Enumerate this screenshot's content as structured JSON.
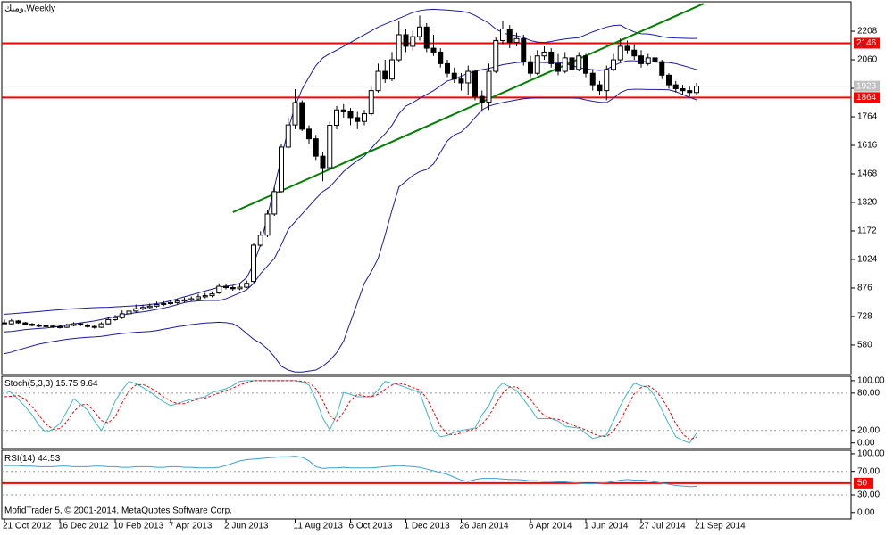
{
  "chart_data": [
    {
      "type": "candlestick",
      "title": "ومبك,Weekly",
      "categories": [
        "21 Oct 2012",
        null,
        null,
        null,
        null,
        null,
        null,
        null,
        "16 Dec 2012",
        null,
        null,
        null,
        null,
        null,
        null,
        null,
        "10 Feb 2013",
        null,
        null,
        null,
        null,
        null,
        null,
        null,
        "7 Apr 2013",
        null,
        null,
        null,
        null,
        null,
        null,
        null,
        "2 Jun 2013",
        null,
        null,
        null,
        null,
        null,
        null,
        null,
        null,
        null,
        "11 Aug 2013",
        null,
        null,
        null,
        null,
        null,
        null,
        null,
        "6 Oct 2013",
        null,
        null,
        null,
        null,
        null,
        null,
        null,
        "1 Dec 2013",
        null,
        null,
        null,
        null,
        null,
        null,
        null,
        "26 Jan 2014",
        null,
        null,
        null,
        null,
        null,
        null,
        null,
        null,
        null,
        "6 Apr 2014",
        null,
        null,
        null,
        null,
        null,
        null,
        null,
        "1 Jun 2014",
        null,
        null,
        null,
        null,
        null,
        null,
        null,
        "27 Jul 2014",
        null,
        null,
        null,
        null,
        null,
        null,
        null,
        "21 Sep 2014"
      ],
      "open": [
        695,
        690,
        705,
        695,
        688,
        682,
        680,
        678,
        675,
        672,
        682,
        690,
        684,
        676,
        672,
        690,
        712,
        722,
        742,
        756,
        768,
        775,
        782,
        790,
        795,
        800,
        808,
        814,
        820,
        830,
        836,
        850,
        885,
        878,
        872,
        880,
        910,
        1098,
        1150,
        1260,
        1376,
        1607,
        1722,
        1838,
        1700,
        1650,
        1560,
        1500,
        1720,
        1800,
        1790,
        1760,
        1740,
        1780,
        1900,
        2000,
        1960,
        2060,
        2190,
        2130,
        2180,
        2230,
        2120,
        2100,
        2040,
        1990,
        1960,
        1940,
        2000,
        1870,
        1840,
        2000,
        2160,
        2220,
        2150,
        2170,
        2050,
        1990,
        2080,
        2100,
        2040,
        2000,
        2070,
        2010,
        2080,
        1990,
        1930,
        1900,
        2010,
        2060,
        2130,
        2110,
        2080,
        2040,
        2070,
        2050,
        1980,
        1930,
        1910,
        1900,
        1890
      ],
      "high": [
        712,
        715,
        710,
        700,
        695,
        690,
        688,
        686,
        684,
        690,
        698,
        696,
        690,
        684,
        698,
        725,
        735,
        760,
        775,
        790,
        790,
        795,
        805,
        808,
        812,
        820,
        826,
        832,
        845,
        850,
        858,
        900,
        895,
        888,
        895,
        915,
        1110,
        1170,
        1280,
        1400,
        1620,
        1760,
        1907,
        1850,
        1720,
        1670,
        1580,
        1740,
        1820,
        1830,
        1810,
        1790,
        1800,
        1920,
        2040,
        2060,
        2100,
        2260,
        2220,
        2210,
        2290,
        2250,
        2190,
        2120,
        2060,
        2020,
        1990,
        2030,
        2010,
        1900,
        2040,
        2180,
        2260,
        2240,
        2200,
        2190,
        2080,
        2110,
        2130,
        2120,
        2090,
        2100,
        2090,
        2100,
        2090,
        2010,
        1950,
        2030,
        2090,
        2170,
        2160,
        2140,
        2110,
        2090,
        2080,
        2060,
        1990,
        1950,
        1930,
        1920,
        1940
      ],
      "low": [
        688,
        685,
        690,
        682,
        676,
        672,
        670,
        668,
        665,
        668,
        676,
        678,
        670,
        665,
        668,
        686,
        705,
        715,
        735,
        748,
        760,
        768,
        775,
        782,
        788,
        792,
        800,
        806,
        812,
        822,
        828,
        845,
        868,
        862,
        865,
        875,
        905,
        1090,
        1140,
        1250,
        1370,
        1600,
        1700,
        1690,
        1620,
        1540,
        1430,
        1490,
        1700,
        1760,
        1720,
        1700,
        1720,
        1770,
        1890,
        1940,
        1950,
        2050,
        2100,
        2110,
        2160,
        2100,
        2080,
        2020,
        1970,
        1940,
        1900,
        1880,
        1850,
        1790,
        1800,
        1990,
        2140,
        2120,
        2130,
        2030,
        1970,
        1980,
        2060,
        2020,
        1980,
        1990,
        1990,
        2000,
        1970,
        1900,
        1880,
        1850,
        2000,
        2050,
        2090,
        2060,
        2020,
        2030,
        2020,
        1960,
        1910,
        1890,
        1880,
        1870,
        1880
      ],
      "close": [
        690,
        705,
        695,
        688,
        682,
        680,
        678,
        675,
        672,
        682,
        690,
        684,
        676,
        672,
        690,
        712,
        722,
        742,
        756,
        768,
        775,
        782,
        790,
        795,
        800,
        808,
        814,
        820,
        830,
        836,
        845,
        885,
        878,
        872,
        880,
        900,
        1098,
        1150,
        1260,
        1376,
        1607,
        1722,
        1838,
        1700,
        1650,
        1560,
        1500,
        1720,
        1800,
        1790,
        1760,
        1740,
        1780,
        1900,
        2000,
        1960,
        2060,
        2190,
        2130,
        2180,
        2230,
        2120,
        2100,
        2040,
        1990,
        1960,
        1940,
        2000,
        1870,
        1840,
        2000,
        2160,
        2220,
        2150,
        2170,
        2050,
        1990,
        2080,
        2100,
        2040,
        2000,
        2070,
        2010,
        2080,
        1990,
        1930,
        1900,
        2010,
        2060,
        2130,
        2110,
        2080,
        2040,
        2070,
        2050,
        1980,
        1930,
        1910,
        1900,
        1890,
        1923
      ],
      "series": [
        {
          "color": "#1a1aa6",
          "values": [
            740,
            742,
            745,
            748,
            751,
            754,
            757,
            760,
            763,
            766,
            768,
            770,
            772,
            774,
            775,
            776,
            778,
            780,
            782,
            784,
            786,
            790,
            795,
            800,
            810,
            820,
            830,
            840,
            850,
            860,
            870,
            880,
            885,
            890,
            900,
            930,
            1000,
            1100,
            1250,
            1400,
            1550,
            1700,
            1820,
            1907,
            1970,
            2030,
            2070,
            2092,
            2110,
            2130,
            2150,
            2170,
            2190,
            2210,
            2230,
            2245,
            2260,
            2275,
            2290,
            2305,
            2315,
            2320,
            2322,
            2320,
            2318,
            2315,
            2312,
            2305,
            2290,
            2270,
            2250,
            2220,
            2200,
            2190,
            2185,
            2175,
            2160,
            2152,
            2150,
            2155,
            2162,
            2168,
            2172,
            2175,
            2190,
            2205,
            2218,
            2230,
            2238,
            2240,
            2220,
            2205,
            2195,
            2194,
            2188,
            2180,
            2175,
            2173,
            2172,
            2171,
            2171
          ]
        },
        {
          "color": "#1a1aa6",
          "values": [
            648,
            650,
            655,
            660,
            663,
            666,
            668,
            672,
            678,
            685,
            690,
            695,
            700,
            705,
            712,
            720,
            728,
            735,
            742,
            748,
            752,
            758,
            765,
            772,
            780,
            790,
            800,
            806,
            809,
            811,
            811,
            811,
            820,
            835,
            850,
            867,
            900,
            950,
            990,
            1029,
            1100,
            1180,
            1220,
            1260,
            1300,
            1340,
            1376,
            1400,
            1440,
            1480,
            1510,
            1537,
            1560,
            1600,
            1640,
            1676,
            1720,
            1780,
            1820,
            1838,
            1860,
            1880,
            1900,
            1925,
            1950,
            1960,
            1975,
            1990,
            2000,
            2009,
            2015,
            2025,
            2035,
            2040,
            2046,
            2048,
            2048,
            2047,
            2046,
            2046,
            2046,
            2040,
            2030,
            2020,
            2012,
            2009,
            2005,
            2010,
            2030,
            2045,
            2055,
            2055,
            2052,
            2050,
            2048,
            2047,
            2046,
            2040,
            2030,
            2020,
            2009
          ]
        },
        {
          "color": "#1a1aa6",
          "values": [
            535,
            543,
            555,
            565,
            575,
            585,
            592,
            598,
            604,
            610,
            614,
            617,
            620,
            622,
            625,
            630,
            635,
            640,
            643,
            646,
            648,
            650,
            655,
            662,
            668,
            675,
            680,
            686,
            690,
            694,
            696,
            698,
            696,
            690,
            670,
            640,
            610,
            590,
            560,
            520,
            470,
            450,
            440,
            440,
            445,
            450,
            470,
            500,
            540,
            600,
            700,
            800,
            900,
            960,
            1030,
            1150,
            1280,
            1400,
            1430,
            1460,
            1480,
            1491,
            1520,
            1580,
            1640,
            1670,
            1685,
            1720,
            1760,
            1800,
            1820,
            1830,
            1838,
            1845,
            1852,
            1858,
            1861,
            1862,
            1862,
            1862,
            1862,
            1862,
            1862,
            1860,
            1852,
            1845,
            1840,
            1838,
            1860,
            1890,
            1905,
            1907,
            1907,
            1906,
            1906,
            1905,
            1904,
            1895,
            1880,
            1865,
            1852
          ]
        }
      ],
      "price_lines": [
        {
          "value": 2146,
          "color": "#ff0000"
        },
        {
          "value": 1864,
          "color": "#ff0000"
        }
      ],
      "current_price": 1923,
      "trendline": {
        "x": [
          33,
          101
        ],
        "y": [
          1269,
          2351
        ],
        "color": "#008000"
      },
      "ylim": [
        427,
        2361
      ],
      "yticks": [
        580,
        728,
        876,
        1024,
        1172,
        1320,
        1468,
        1616,
        1764,
        1912,
        2060,
        2208
      ],
      "copyright": "MofidTrader 5, © 2001-2014, MetaQuotes Software Corp."
    },
    {
      "type": "line",
      "title": "Stoch(5,3,3)",
      "series": [
        {
          "color": "#3cb8c8",
          "values": [
            84,
            81,
            70,
            58,
            45,
            28,
            17,
            22,
            31,
            50,
            71,
            62,
            53,
            35,
            20,
            40,
            67,
            85,
            99,
            95,
            89,
            82,
            74,
            66,
            60,
            63,
            67,
            70,
            72,
            74,
            81,
            84,
            87,
            92,
            99,
            100,
            100,
            100,
            100,
            100,
            100,
            100,
            100,
            98,
            93,
            70,
            40,
            21,
            45,
            81,
            78,
            74,
            74,
            74,
            85,
            99,
            96,
            93,
            89,
            85,
            81,
            50,
            20,
            10,
            12,
            17,
            20,
            22,
            24,
            45,
            60,
            85,
            96,
            90,
            84,
            70,
            55,
            39,
            39,
            39,
            35,
            27,
            25,
            24,
            15,
            7,
            10,
            13,
            35,
            60,
            80,
            96,
            92,
            89,
            75,
            53,
            30,
            10,
            4,
            0,
            15.75
          ]
        },
        {
          "color": "#ff0000",
          "dash": true,
          "values": [
            74,
            75,
            76,
            70,
            58,
            44,
            30,
            22,
            23,
            34,
            50,
            61,
            62,
            50,
            36,
            32,
            42,
            64,
            84,
            93,
            94,
            89,
            82,
            74,
            67,
            63,
            63,
            67,
            70,
            72,
            76,
            80,
            84,
            88,
            93,
            97,
            100,
            100,
            100,
            100,
            100,
            100,
            100,
            99,
            97,
            87,
            68,
            44,
            35,
            49,
            68,
            78,
            75,
            74,
            78,
            86,
            93,
            96,
            93,
            89,
            85,
            72,
            50,
            27,
            14,
            13,
            16,
            20,
            22,
            30,
            43,
            63,
            80,
            90,
            90,
            81,
            70,
            55,
            44,
            39,
            38,
            34,
            29,
            25,
            21,
            15,
            11,
            10,
            19,
            36,
            58,
            79,
            89,
            92,
            85,
            72,
            53,
            31,
            15,
            5,
            9.64
          ]
        }
      ],
      "levels": [
        80,
        20
      ],
      "ylim": [
        -9,
        107
      ],
      "yticks": [
        {
          "value": 100,
          "label": "100.00"
        },
        {
          "value": 80,
          "label": "80.00"
        },
        {
          "value": 20,
          "label": "20.00"
        },
        {
          "value": 0,
          "label": "0.00"
        }
      ]
    },
    {
      "type": "line",
      "title": "RSI(14)",
      "series": [
        {
          "color": "#3c9fd8",
          "values": [
            80,
            80,
            80,
            79,
            79,
            78,
            78,
            78,
            79,
            79,
            78,
            78,
            78,
            79,
            79,
            78,
            78,
            77,
            77,
            78,
            78,
            78,
            77,
            77,
            78,
            78,
            77,
            77,
            76,
            76,
            76,
            77,
            80,
            84,
            88,
            90,
            91,
            92,
            93,
            94,
            95,
            95,
            96,
            94,
            88,
            78,
            75,
            76,
            76,
            77,
            76,
            76,
            76,
            76,
            77,
            78,
            79,
            80,
            79,
            78,
            77,
            74,
            71,
            68,
            65,
            60,
            55,
            53,
            56,
            58,
            58,
            58,
            57,
            56,
            56,
            55,
            54,
            54,
            53,
            53,
            52,
            52,
            51,
            50,
            49,
            49,
            50,
            51,
            53,
            55,
            56,
            55,
            55,
            54,
            52,
            50,
            48,
            46,
            45,
            44,
            44.53
          ]
        }
      ],
      "levels": [
        70,
        30
      ],
      "level_line": {
        "value": 50,
        "label": "50",
        "color": "#ff0000"
      },
      "ylim": [
        -11,
        106
      ],
      "yticks": [
        {
          "value": 100,
          "label": "100.00"
        },
        {
          "value": 70,
          "label": "70.00"
        },
        {
          "value": 30,
          "label": "30.00"
        },
        {
          "value": 0,
          "label": "0.00"
        }
      ]
    }
  ]
}
